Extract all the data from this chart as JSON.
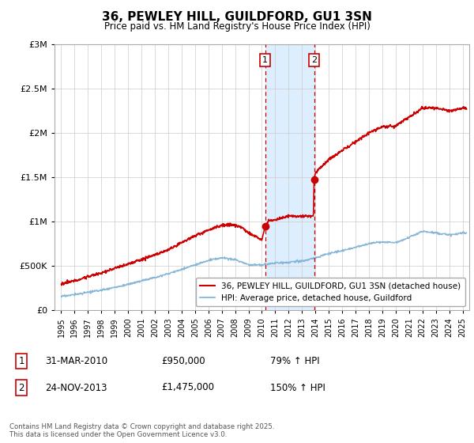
{
  "title": "36, PEWLEY HILL, GUILDFORD, GU1 3SN",
  "subtitle": "Price paid vs. HM Land Registry's House Price Index (HPI)",
  "legend_line1": "36, PEWLEY HILL, GUILDFORD, GU1 3SN (detached house)",
  "legend_line2": "HPI: Average price, detached house, Guildford",
  "annotation1_date": "31-MAR-2010",
  "annotation1_price": "£950,000",
  "annotation1_hpi": "79% ↑ HPI",
  "annotation2_date": "24-NOV-2013",
  "annotation2_price": "£1,475,000",
  "annotation2_hpi": "150% ↑ HPI",
  "footer": "Contains HM Land Registry data © Crown copyright and database right 2025.\nThis data is licensed under the Open Government Licence v3.0.",
  "line1_color": "#cc0000",
  "line2_color": "#7bafd4",
  "shade_color": "#ddeeff",
  "vline_color": "#cc0000",
  "sale1_x": 2010.25,
  "sale1_y": 950000,
  "sale2_x": 2013.9,
  "sale2_y": 1475000,
  "ylim": [
    0,
    3000000
  ],
  "xlim_start": 1994.5,
  "xlim_end": 2025.5,
  "background_color": "#ffffff",
  "grid_color": "#cccccc",
  "hpi_anchors_x": [
    1995,
    1996,
    1997,
    1998,
    1999,
    2000,
    2001,
    2002,
    2003,
    2004,
    2005,
    2006,
    2007,
    2008,
    2009,
    2010,
    2011,
    2012,
    2013,
    2014,
    2015,
    2016,
    2017,
    2018,
    2019,
    2020,
    2021,
    2022,
    2023,
    2024,
    2025
  ],
  "hpi_anchors_y": [
    155000,
    175000,
    200000,
    225000,
    255000,
    290000,
    330000,
    370000,
    410000,
    460000,
    510000,
    560000,
    590000,
    570000,
    510000,
    510000,
    530000,
    540000,
    555000,
    590000,
    640000,
    670000,
    710000,
    750000,
    770000,
    760000,
    820000,
    890000,
    870000,
    850000,
    870000
  ],
  "prop_anchors_x": [
    1995,
    1996,
    1997,
    1998,
    1999,
    2000,
    2001,
    2002,
    2003,
    2004,
    2005,
    2006,
    2007,
    2008,
    2008.5,
    2009,
    2009.5,
    2010.0,
    2010.25,
    2010.5,
    2011,
    2012,
    2013,
    2013.85,
    2013.9,
    2014,
    2015,
    2016,
    2017,
    2018,
    2019,
    2020,
    2021,
    2022,
    2023,
    2024,
    2025
  ],
  "prop_anchors_y": [
    295000,
    330000,
    375000,
    420000,
    470000,
    520000,
    570000,
    620000,
    680000,
    760000,
    840000,
    900000,
    960000,
    960000,
    930000,
    870000,
    830000,
    790000,
    950000,
    1010000,
    1020000,
    1060000,
    1060000,
    1060000,
    1475000,
    1550000,
    1700000,
    1800000,
    1900000,
    2000000,
    2070000,
    2080000,
    2180000,
    2280000,
    2280000,
    2250000,
    2280000
  ]
}
